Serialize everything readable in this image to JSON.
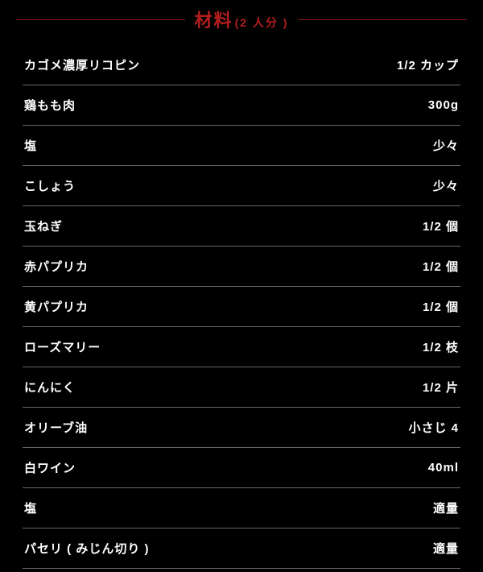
{
  "header": {
    "title": "材料",
    "subtitle": "(2 人分 )"
  },
  "ingredients": [
    {
      "name": "カゴメ濃厚リコピン",
      "amount": "1/2 カップ"
    },
    {
      "name": "鶏もも肉",
      "amount": "300g"
    },
    {
      "name": "塩",
      "amount": "少々"
    },
    {
      "name": "こしょう",
      "amount": "少々"
    },
    {
      "name": "玉ねぎ",
      "amount": "1/2 個"
    },
    {
      "name": "赤パプリカ",
      "amount": "1/2 個"
    },
    {
      "name": "黄パプリカ",
      "amount": "1/2 個"
    },
    {
      "name": "ローズマリー",
      "amount": "1/2 枝"
    },
    {
      "name": "にんにく",
      "amount": "1/2 片"
    },
    {
      "name": "オリーブ油",
      "amount": "小さじ 4"
    },
    {
      "name": "白ワイン",
      "amount": "40ml"
    },
    {
      "name": "塩",
      "amount": "適量"
    },
    {
      "name": "パセリ ( みじん切り )",
      "amount": "適量"
    }
  ],
  "colors": {
    "background": "#000000",
    "title_color": "#b41e1e",
    "header_line_color": "#8b1a1a",
    "text_color": "#ffffff",
    "divider_color": "#666666"
  }
}
